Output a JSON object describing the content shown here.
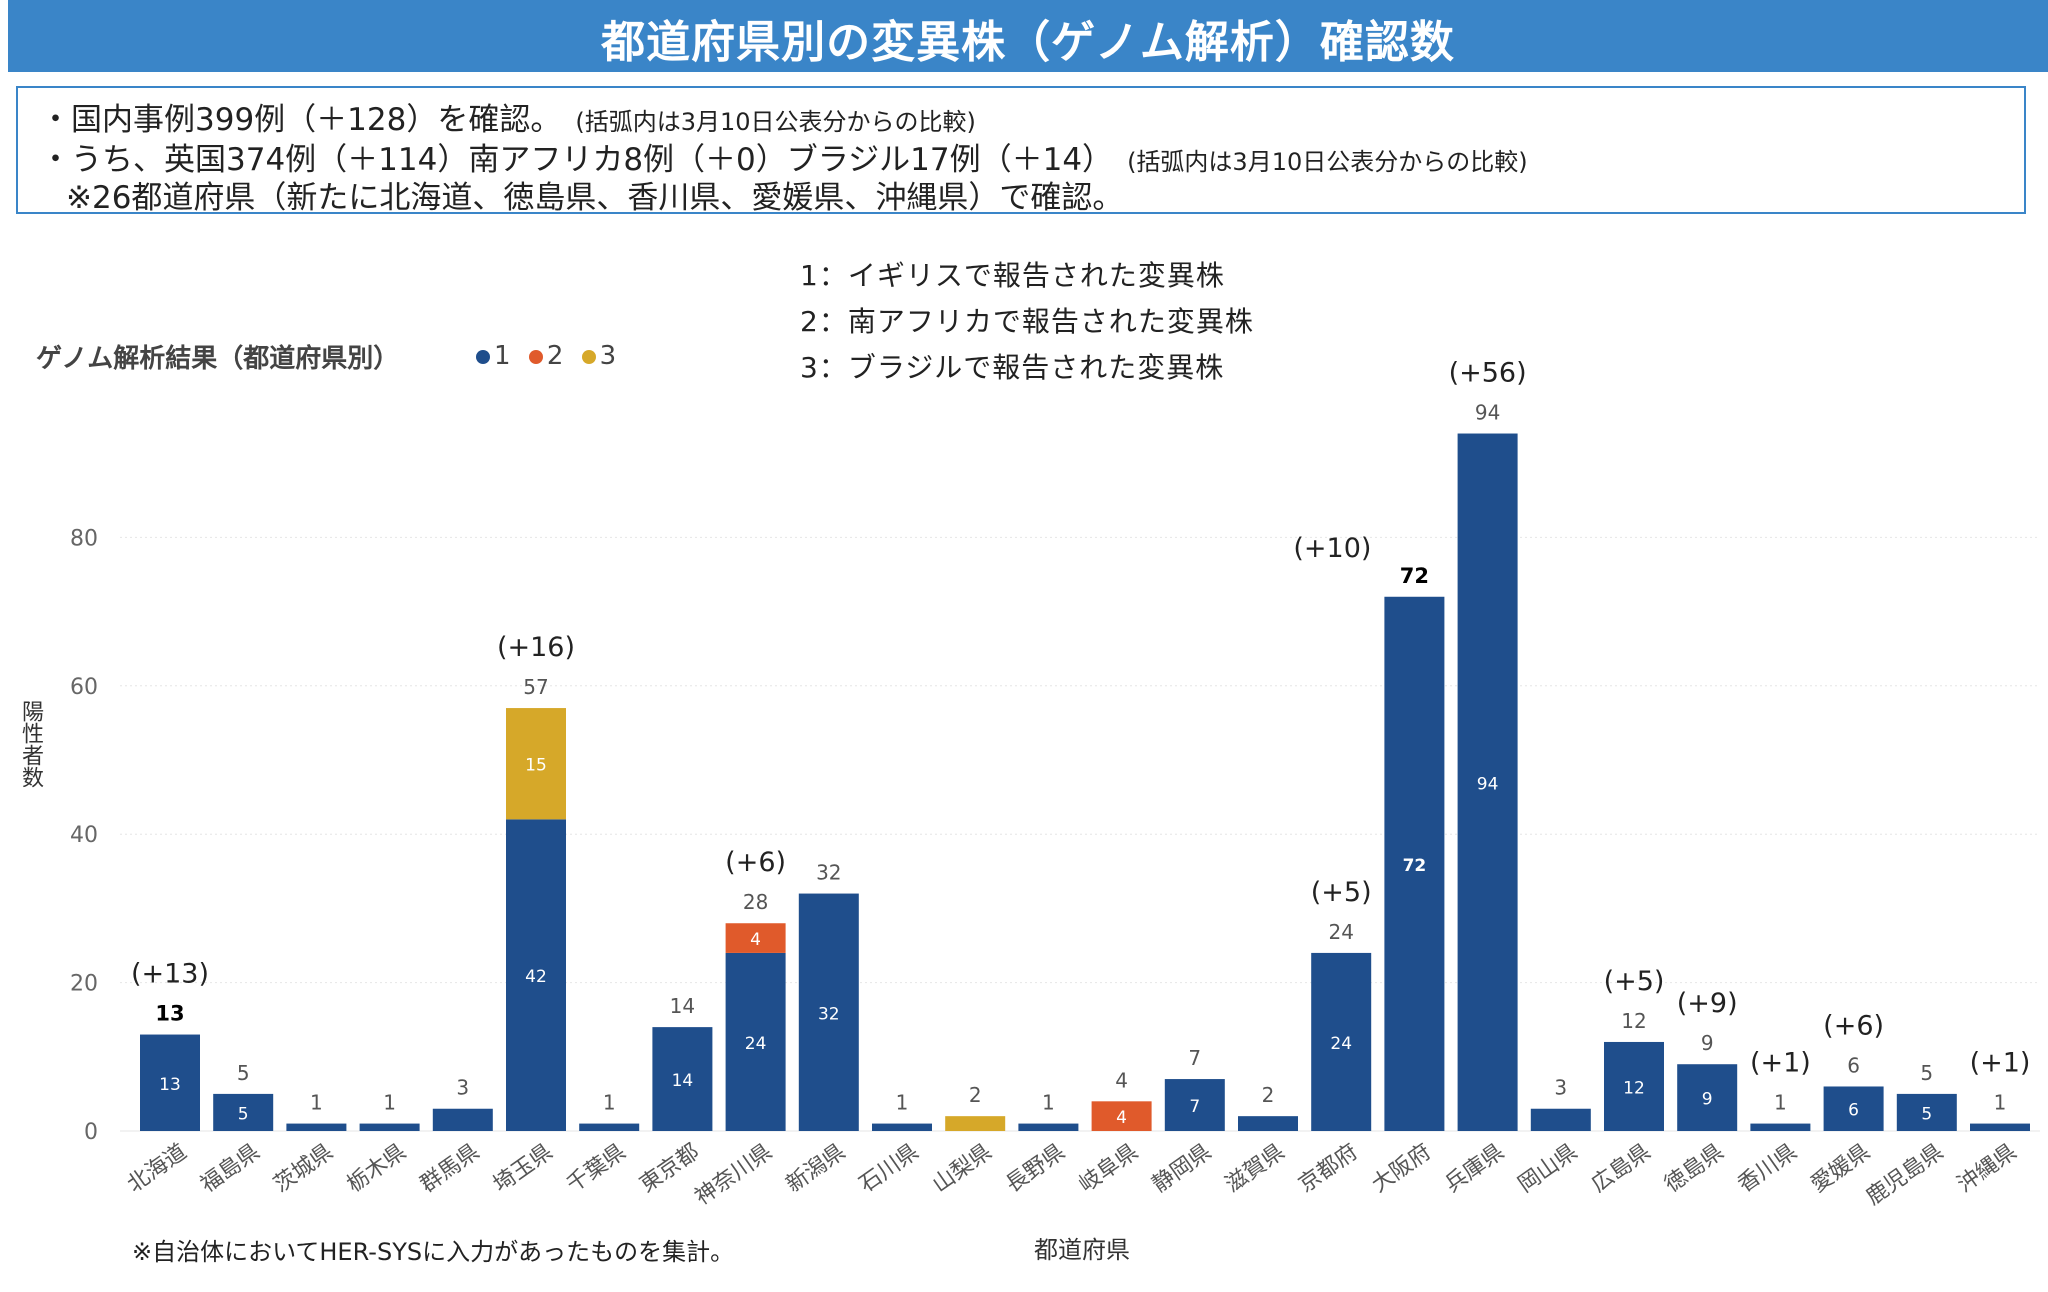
{
  "header": {
    "title": "都道府県別の変異株（ゲノム解析）確認数"
  },
  "summary": {
    "line1": "・国内事例399例（＋128）を確認。",
    "line1_note": "(括弧内は3月10日公表分からの比較)",
    "line2": "・うち、英国374例（＋114）南アフリカ8例（＋0）ブラジル17例（＋14）",
    "line2_note": "(括弧内は3月10日公表分からの比較)",
    "line3": "※26都道府県（新たに北海道、徳島県、香川県、愛媛県、沖縄県）で確認。"
  },
  "legend": {
    "title": "ゲノム解析結果（都道府県別）",
    "items": [
      {
        "label": "1",
        "color": "#1f4e8c"
      },
      {
        "label": "2",
        "color": "#e05a2b"
      },
      {
        "label": "3",
        "color": "#d6a829"
      }
    ],
    "descriptions": [
      "1：イギリスで報告された変異株",
      "2：南アフリカで報告された変異株",
      "3：ブラジルで報告された変異株"
    ]
  },
  "footnote": "※自治体においてHER-SYSに入力があったものを集計。",
  "chart_data": {
    "type": "bar",
    "stacked": true,
    "xlabel": "都道府県",
    "ylabel": "陽性者数",
    "ylim": [
      0,
      100
    ],
    "yticks": [
      0,
      20,
      40,
      60,
      80
    ],
    "grid": true,
    "legend_position": "top-left",
    "categories": [
      "北海道",
      "福島県",
      "茨城県",
      "栃木県",
      "群馬県",
      "埼玉県",
      "千葉県",
      "東京都",
      "神奈川県",
      "新潟県",
      "石川県",
      "山梨県",
      "長野県",
      "岐阜県",
      "静岡県",
      "滋賀県",
      "京都府",
      "大阪府",
      "兵庫県",
      "岡山県",
      "広島県",
      "徳島県",
      "香川県",
      "愛媛県",
      "鹿児島県",
      "沖縄県"
    ],
    "series": [
      {
        "name": "1",
        "color": "#1f4e8c",
        "values": [
          13,
          5,
          1,
          1,
          3,
          42,
          1,
          14,
          24,
          32,
          1,
          0,
          1,
          0,
          7,
          2,
          24,
          72,
          94,
          3,
          12,
          9,
          1,
          6,
          5,
          1
        ]
      },
      {
        "name": "2",
        "color": "#e05a2b",
        "values": [
          0,
          0,
          0,
          0,
          0,
          0,
          0,
          0,
          4,
          0,
          0,
          0,
          0,
          4,
          0,
          0,
          0,
          0,
          0,
          0,
          0,
          0,
          0,
          0,
          0,
          0
        ]
      },
      {
        "name": "3",
        "color": "#d6a829",
        "values": [
          0,
          0,
          0,
          0,
          0,
          15,
          0,
          0,
          0,
          0,
          0,
          2,
          0,
          0,
          0,
          0,
          0,
          0,
          0,
          0,
          0,
          0,
          0,
          0,
          0,
          0
        ]
      }
    ],
    "totals": [
      13,
      5,
      1,
      1,
      3,
      57,
      1,
      14,
      28,
      32,
      1,
      2,
      1,
      4,
      7,
      2,
      24,
      72,
      94,
      3,
      12,
      9,
      1,
      6,
      5,
      1
    ],
    "bold_totals": [
      "北海道",
      "大阪府"
    ],
    "segment_labels_shown": [
      "北海道",
      "福島県",
      "埼玉県",
      "東京都",
      "神奈川県",
      "新潟県",
      "岐阜県",
      "静岡県",
      "京都府",
      "大阪府",
      "兵庫県",
      "広島県",
      "徳島県",
      "愛媛県",
      "鹿児島県"
    ],
    "increase_annotations": [
      {
        "category": "北海道",
        "text": "(+13)"
      },
      {
        "category": "埼玉県",
        "text": "(+16)"
      },
      {
        "category": "神奈川県",
        "text": "(+6)"
      },
      {
        "category": "京都府",
        "text": "(+5)"
      },
      {
        "category": "大阪府",
        "text": "(+10)"
      },
      {
        "category": "兵庫県",
        "text": "(+56)"
      },
      {
        "category": "広島県",
        "text": "(+5)"
      },
      {
        "category": "徳島県",
        "text": "(+9)"
      },
      {
        "category": "香川県",
        "text": "(+1)"
      },
      {
        "category": "愛媛県",
        "text": "(+6)"
      },
      {
        "category": "沖縄県",
        "text": "(+1)"
      }
    ]
  }
}
